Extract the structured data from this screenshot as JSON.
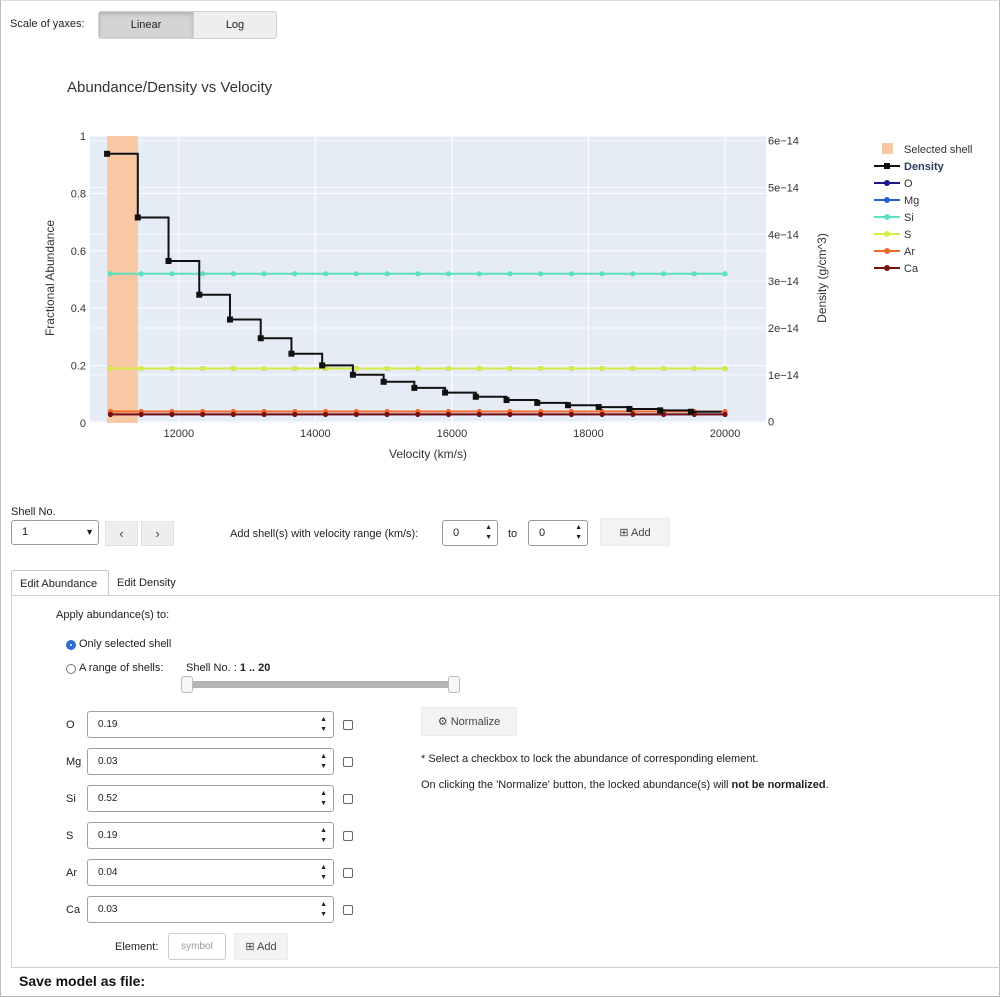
{
  "top": {
    "scale_label": "Scale of yaxes:",
    "scale_options": [
      "Linear",
      "Log"
    ],
    "scale_selected": "Linear"
  },
  "chart_data": {
    "type": "line",
    "title": "Abundance/Density vs Velocity",
    "xlabel": "Velocity (km/s)",
    "ylabel": "Fractional Abundance",
    "y2label": "Density (g/cm^3)",
    "xlim": [
      10700,
      20600
    ],
    "ylim": [
      0,
      1
    ],
    "y2lim": [
      -3e-16,
      6.1e-14
    ],
    "x_ticks": [
      12000,
      14000,
      16000,
      18000,
      20000
    ],
    "x_tick_labels": [
      "12000",
      "14000",
      "16000",
      "18000",
      "20000"
    ],
    "y_ticks": [
      0,
      0.2,
      0.4,
      0.6,
      0.8,
      1
    ],
    "y_tick_labels": [
      "0",
      "0.2",
      "0.4",
      "0.6",
      "0.8",
      "1"
    ],
    "y2_ticks": [
      0,
      1e-14,
      2e-14,
      3e-14,
      4e-14,
      5e-14,
      6e-14
    ],
    "y2_tick_labels": [
      "0",
      "1e−14",
      "2e−14",
      "3e−14",
      "4e−14",
      "5e−14",
      "6e−14"
    ],
    "grid": true,
    "legend_position": "right",
    "selected_shell": {
      "name": "Selected shell",
      "x0": 10950,
      "x1": 11400,
      "color": "#f8c7a4"
    },
    "density": {
      "name": "Density",
      "color": "#111111",
      "x": [
        10950,
        11400,
        11850,
        12300,
        12750,
        13200,
        13650,
        14100,
        14550,
        15000,
        15450,
        15900,
        16350,
        16800,
        17250,
        17700,
        18150,
        18600,
        19050,
        19500
      ],
      "y": [
        5.72e-14,
        4.36e-14,
        3.43e-14,
        2.71e-14,
        2.18e-14,
        1.78e-14,
        1.45e-14,
        1.2e-14,
        1e-14,
        8.5e-15,
        7.2e-15,
        6.2e-15,
        5.3e-15,
        4.6e-15,
        4e-15,
        3.5e-15,
        3.1e-15,
        2.7e-15,
        2.4e-15,
        2.1e-15
      ],
      "x_end": 19950
    },
    "abundance_x": [
      11000,
      11450,
      11900,
      12350,
      12800,
      13250,
      13700,
      14150,
      14600,
      15050,
      15500,
      15950,
      16400,
      16850,
      17300,
      17750,
      18200,
      18650,
      19100,
      19550,
      20000
    ],
    "series": [
      {
        "name": "O",
        "value": 0.19,
        "color": "#1a1a8a"
      },
      {
        "name": "Mg",
        "value": 0.03,
        "color": "#2a5bd7"
      },
      {
        "name": "Si",
        "value": 0.52,
        "color": "#5be0c0"
      },
      {
        "name": "S",
        "value": 0.19,
        "color": "#d8ec4a"
      },
      {
        "name": "Ar",
        "value": 0.04,
        "color": "#f06a2a"
      },
      {
        "name": "Ca",
        "value": 0.03,
        "color": "#7a1010"
      }
    ]
  },
  "shell": {
    "label": "Shell No.",
    "selected": "1",
    "prev": "‹",
    "next": "›",
    "add_range_label": "Add shell(s) with velocity range (km/s):",
    "from_value": "0",
    "to_label": "to",
    "to_value": "0",
    "add_label": "Add"
  },
  "tabs": [
    "Edit Abundance",
    "Edit Density"
  ],
  "abundance": {
    "apply_label": "Apply abundance(s) to:",
    "option_single": "Only selected shell",
    "option_range": "A range of shells:",
    "range_label": "Shell No. : ",
    "range_value": "1 .. 20",
    "normalize_label": "Normalize",
    "note1": "* Select a checkbox to lock the abundance of corresponding element.",
    "note2_pre": "On clicking the 'Normalize' button, the locked abundance(s) will ",
    "note2_bold": "not be normalized",
    "note2_post": ".",
    "elements": [
      {
        "symbol": "O",
        "value": "0.19"
      },
      {
        "symbol": "Mg",
        "value": "0.03"
      },
      {
        "symbol": "Si",
        "value": "0.52"
      },
      {
        "symbol": "S",
        "value": "0.19"
      },
      {
        "symbol": "Ar",
        "value": "0.04"
      },
      {
        "symbol": "Ca",
        "value": "0.03"
      }
    ],
    "element_label": "Element:",
    "element_placeholder": "symbol",
    "element_add": "Add"
  },
  "footer": {
    "save_label": "Save model as file:"
  }
}
